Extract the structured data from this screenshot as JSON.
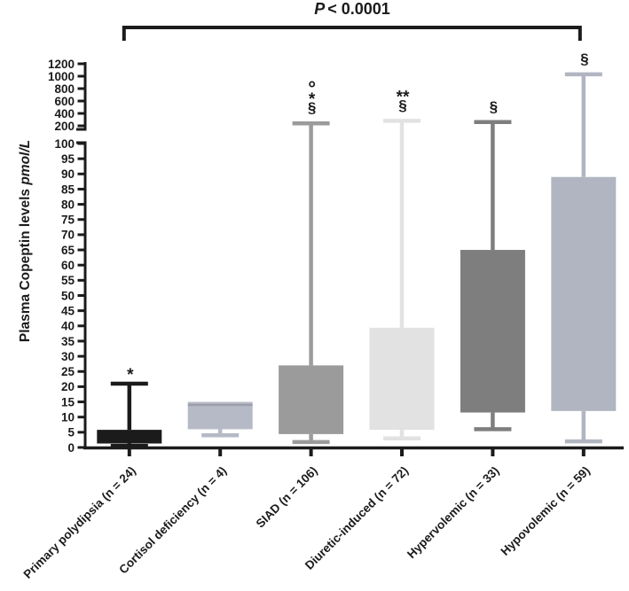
{
  "significance": {
    "p_italic": "P",
    "p_rest": "< 0.0001",
    "p_full": "P < 0.0001",
    "bracket_from_group": "Primary polydipsia (n = 24)",
    "bracket_to_group": "Hypovolemic (n = 59)"
  },
  "chart_data": {
    "type": "boxplot",
    "title": "P < 0.0001",
    "ylabel_main": "Plasma Copeptin levels ",
    "ylabel_unit_italic": "pmol/L",
    "ylabel_full": "Plasma Copeptin levels pmol/L",
    "axis_break": true,
    "lower_axis_range": [
      0,
      100
    ],
    "upper_axis_range": [
      200,
      1200
    ],
    "lower_ticks": [
      0,
      5,
      10,
      15,
      20,
      25,
      30,
      35,
      40,
      45,
      50,
      55,
      60,
      65,
      70,
      75,
      80,
      85,
      90,
      95,
      100
    ],
    "upper_ticks": [
      200,
      400,
      600,
      800,
      1000,
      1200
    ],
    "grid": false,
    "axis_color": "#1b1b1b",
    "groups": [
      {
        "label": "Primary polydipsia (n = 24)",
        "n": 24,
        "color": "#1b1b1b",
        "whisker_low": 0.5,
        "q1": 1.3,
        "median": null,
        "q3": 5.8,
        "whisker_high": 21,
        "symbols": [
          "*"
        ]
      },
      {
        "label": "Cortisol deficiency (n = 4)",
        "n": 4,
        "color": "#b6bac6",
        "whisker_low": 4,
        "q1": 6,
        "median": 14,
        "q3": 15,
        "whisker_high": 15,
        "symbols": []
      },
      {
        "label": "SIAD (n = 106)",
        "n": 106,
        "color": "#9b9b9b",
        "whisker_low": 1.8,
        "q1": 4.4,
        "median": null,
        "q3": 27,
        "whisker_high": 240,
        "symbols": [
          "§",
          "*",
          "°"
        ]
      },
      {
        "label": "Diuretic-induced (n = 72)",
        "n": 72,
        "color": "#e2e2e2",
        "whisker_low": 3,
        "q1": 5.8,
        "median": null,
        "q3": 39.4,
        "whisker_high": 280,
        "symbols": [
          "§",
          "**"
        ]
      },
      {
        "label": "Hypervolemic (n = 33)",
        "n": 33,
        "color": "#7e7e7e",
        "whisker_low": 6,
        "q1": 11.5,
        "median": null,
        "q3": 65,
        "whisker_high": 260,
        "symbols": [
          "§"
        ]
      },
      {
        "label": "Hypovolemic (n = 59)",
        "n": 59,
        "color": "#b1b5c1",
        "whisker_low": 2,
        "q1": 12,
        "median": null,
        "q3": 89,
        "whisker_high": 1030,
        "symbols": [
          "§"
        ]
      }
    ]
  }
}
